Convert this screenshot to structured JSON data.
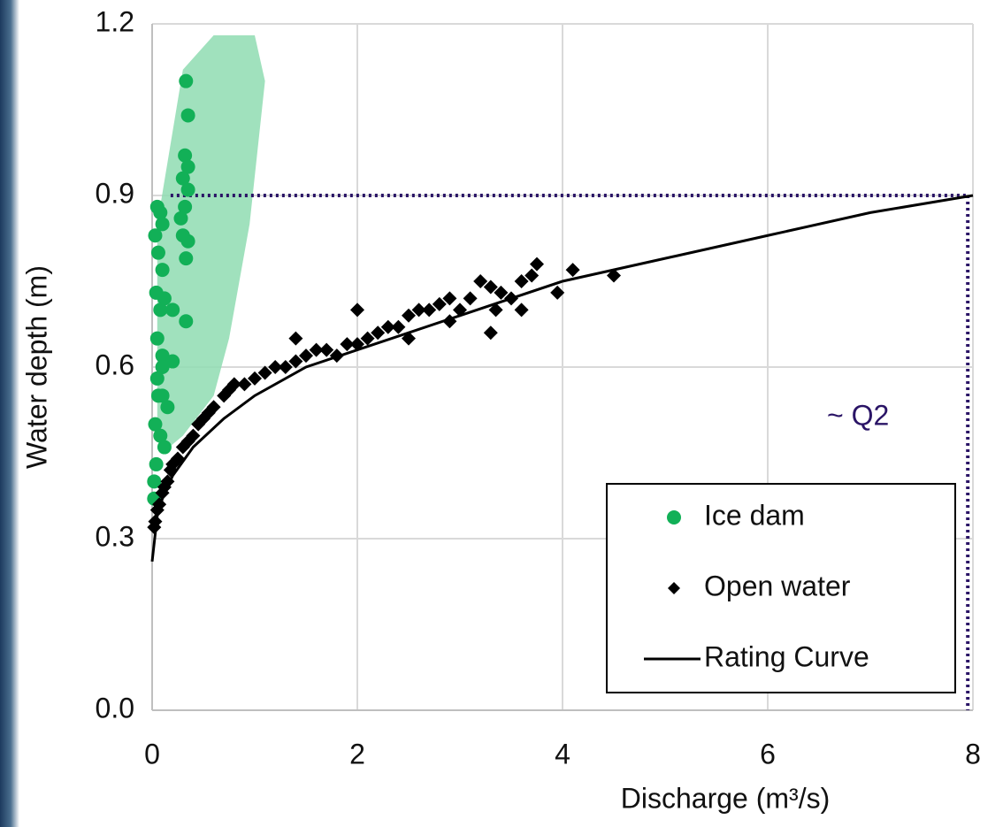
{
  "chart_data": {
    "type": "scatter",
    "xlabel": "Discharge (m³/s)",
    "ylabel": "Water depth (m)",
    "xlim": [
      0,
      8
    ],
    "ylim": [
      0,
      1.2
    ],
    "xticks": [
      0,
      2,
      4,
      6,
      8
    ],
    "yticks": [
      {
        "value": 0,
        "label": "0.0"
      },
      0.3,
      0.6,
      0.9,
      1.2
    ],
    "grid": true,
    "legend": "bottom-right",
    "series": [
      {
        "name": "Ice dam",
        "mode": "markers",
        "marker": "circle",
        "color": "#12b057",
        "x": [
          0.33,
          0.35,
          0.32,
          0.35,
          0.3,
          0.35,
          0.32,
          0.28,
          0.3,
          0.35,
          0.33,
          0.05,
          0.08,
          0.1,
          0.03,
          0.06,
          0.1,
          0.04,
          0.08,
          0.12,
          0.2,
          0.33,
          0.05,
          0.1,
          0.2,
          0.05,
          0.1,
          0.15,
          0.03,
          0.08,
          0.12,
          0.04,
          0.02,
          0.02,
          0.06,
          0.1
        ],
        "y": [
          1.1,
          1.04,
          0.97,
          0.95,
          0.93,
          0.91,
          0.88,
          0.86,
          0.83,
          0.82,
          0.79,
          0.88,
          0.87,
          0.85,
          0.83,
          0.8,
          0.77,
          0.73,
          0.7,
          0.72,
          0.7,
          0.68,
          0.65,
          0.62,
          0.61,
          0.58,
          0.55,
          0.53,
          0.5,
          0.48,
          0.46,
          0.43,
          0.4,
          0.37,
          0.55,
          0.6
        ]
      },
      {
        "name": "Open water",
        "mode": "markers",
        "marker": "diamond",
        "color": "#000000",
        "x": [
          0.02,
          0.03,
          0.05,
          0.07,
          0.1,
          0.12,
          0.15,
          0.18,
          0.2,
          0.25,
          0.3,
          0.35,
          0.4,
          0.45,
          0.5,
          0.55,
          0.6,
          0.7,
          0.75,
          0.8,
          0.9,
          1.0,
          1.1,
          1.2,
          1.3,
          1.4,
          1.5,
          1.6,
          1.7,
          1.8,
          1.9,
          2.0,
          2.1,
          2.2,
          2.3,
          2.4,
          2.5,
          2.6,
          2.7,
          2.8,
          2.9,
          3.0,
          3.1,
          3.2,
          3.3,
          3.35,
          3.4,
          3.5,
          3.6,
          3.7,
          3.75,
          3.95,
          4.1,
          4.5,
          1.4,
          2.0,
          2.5,
          2.9,
          3.3,
          3.6
        ],
        "y": [
          0.32,
          0.33,
          0.35,
          0.36,
          0.38,
          0.39,
          0.4,
          0.42,
          0.43,
          0.44,
          0.46,
          0.47,
          0.48,
          0.5,
          0.51,
          0.52,
          0.53,
          0.55,
          0.56,
          0.57,
          0.57,
          0.58,
          0.59,
          0.6,
          0.6,
          0.61,
          0.62,
          0.63,
          0.63,
          0.62,
          0.64,
          0.64,
          0.65,
          0.66,
          0.67,
          0.67,
          0.69,
          0.7,
          0.7,
          0.71,
          0.72,
          0.7,
          0.72,
          0.75,
          0.74,
          0.7,
          0.73,
          0.72,
          0.75,
          0.76,
          0.78,
          0.73,
          0.77,
          0.76,
          0.65,
          0.7,
          0.65,
          0.68,
          0.66,
          0.7
        ]
      },
      {
        "name": "Rating Curve",
        "mode": "line",
        "color": "#000000",
        "x": [
          0,
          0.05,
          0.1,
          0.2,
          0.4,
          0.7,
          1,
          1.5,
          2,
          3,
          4,
          5,
          6,
          7,
          8
        ],
        "y": [
          0.26,
          0.34,
          0.37,
          0.41,
          0.46,
          0.51,
          0.55,
          0.6,
          0.63,
          0.69,
          0.75,
          0.79,
          0.83,
          0.87,
          0.9
        ]
      }
    ],
    "envelope": {
      "color": "#8fdcb2",
      "x": [
        0.05,
        0.05,
        0.3,
        0.6,
        1.0,
        1.1,
        0.95,
        0.75,
        0.6,
        0.3,
        0.1
      ],
      "y": [
        0.5,
        0.85,
        1.12,
        1.18,
        1.18,
        1.1,
        0.85,
        0.65,
        0.55,
        0.48,
        0.45
      ]
    },
    "reference": {
      "label": "~ Q2",
      "x": 7.95,
      "y": 0.9,
      "x_start": 0.18,
      "color": "#2a1466"
    }
  }
}
